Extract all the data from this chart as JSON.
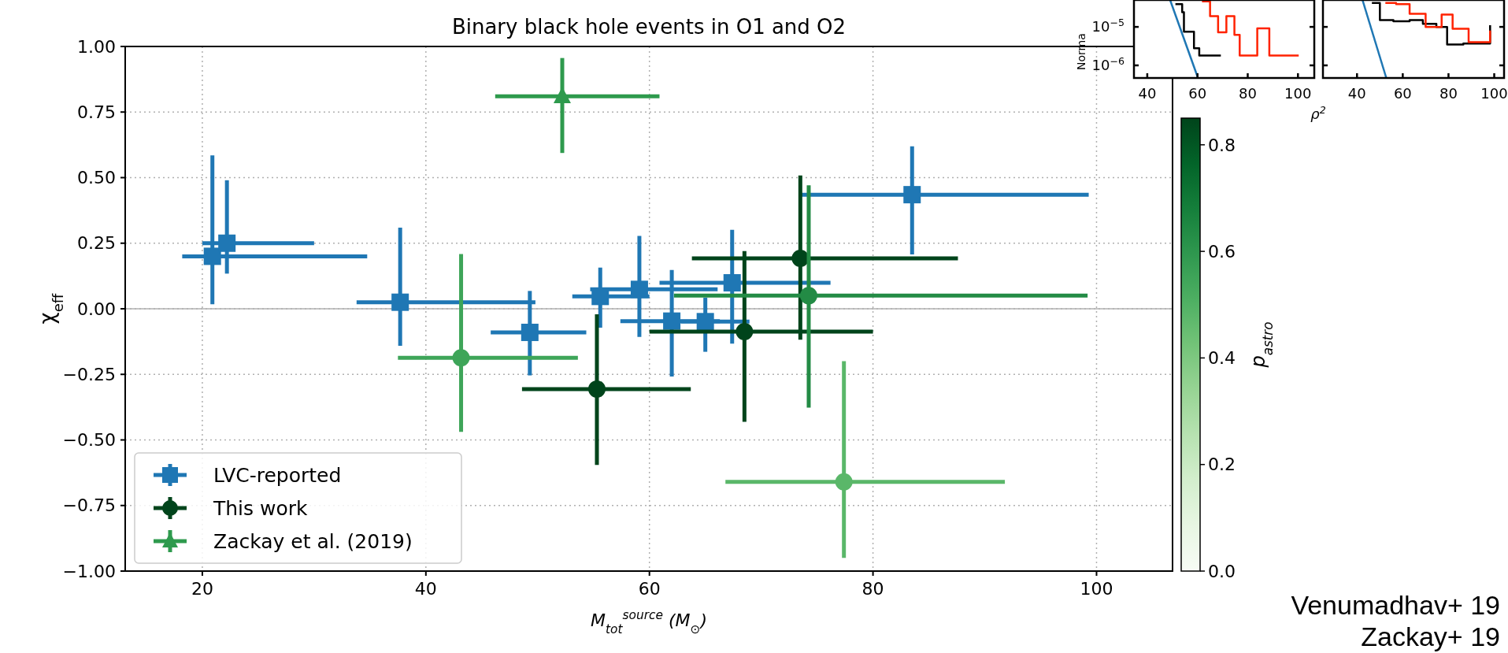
{
  "chart_data": [
    {
      "type": "scatter",
      "title": "Binary black hole events in O1 and O2",
      "xlabel": "M$_{tot}$$^{source}$ (M$_{⊙}$)",
      "ylabel": "χ$_{eff}$",
      "clabel": "p$_{astro}$",
      "xlim": [
        13.1,
        106.8
      ],
      "ylim": [
        -1,
        1
      ],
      "xticks": [
        20,
        40,
        60,
        80,
        100
      ],
      "yticks": [
        {
          "value": -1,
          "label": "−1.00"
        },
        {
          "value": -0.75,
          "label": "−0.75"
        },
        {
          "value": -0.5,
          "label": "−0.50"
        },
        {
          "value": -0.25,
          "label": "−0.25"
        },
        {
          "value": 0,
          "label": "0.00"
        },
        {
          "value": 0.25,
          "label": "0.25"
        },
        {
          "value": 0.5,
          "label": "0.50"
        },
        {
          "value": 0.75,
          "label": "0.75"
        },
        {
          "value": 1,
          "label": "1.00"
        }
      ],
      "clim": [
        0,
        0.85
      ],
      "cticks": [
        {
          "value": 0,
          "label": "0.0"
        },
        {
          "value": 0.2,
          "label": "0.2"
        },
        {
          "value": 0.4,
          "label": "0.4"
        },
        {
          "value": 0.6,
          "label": "0.6"
        },
        {
          "value": 0.8,
          "label": "0.8"
        }
      ],
      "grid": true,
      "legend": "bottom left",
      "ref_lines": [
        {
          "axis": "y",
          "value": 0,
          "color": "#b0b0b0",
          "line_style": "solid"
        }
      ],
      "annotations": [
        "Venumadhav+ 19",
        "Zackay+ 19"
      ],
      "series": [
        {
          "name": "LVC-reported",
          "color": "#1f77b4",
          "marker": "square",
          "x": [
            20.9,
            22.2,
            37.7,
            49.3,
            55.6,
            59.1,
            62.0,
            65.0,
            67.4,
            83.5
          ],
          "values": [
            0.2,
            0.25,
            0.025,
            -0.09,
            0.047,
            0.074,
            -0.047,
            -0.049,
            0.099,
            0.435
          ],
          "errors": [
            [
              0.017,
              0.585
            ],
            [
              0.134,
              0.49
            ],
            [
              -0.141,
              0.309
            ],
            [
              -0.254,
              0.068
            ],
            [
              -0.072,
              0.157
            ],
            [
              -0.107,
              0.278
            ],
            [
              -0.258,
              0.148
            ],
            [
              -0.164,
              0.042
            ],
            [
              -0.133,
              0.301
            ],
            [
              0.207,
              0.619
            ]
          ],
          "xerrors": [
            [
              18.2,
              34.75
            ],
            [
              20.0,
              30.0
            ],
            [
              33.8,
              49.8
            ],
            [
              45.8,
              54.35
            ],
            [
              53.1,
              60.0
            ],
            [
              54.7,
              66.1
            ],
            [
              57.4,
              66.3
            ],
            [
              62.8,
              68.95
            ],
            [
              60.9,
              76.2
            ],
            [
              73.6,
              99.3
            ]
          ]
        },
        {
          "name": "This work",
          "color": "#00441b",
          "marker": "circle",
          "x": [
            55.3,
            68.5,
            73.5,
            43.15,
            74.25,
            77.4
          ],
          "values": [
            -0.306,
            -0.087,
            0.192,
            -0.187,
            0.05,
            -0.66
          ],
          "colors": [
            "#00441b",
            "#00441b",
            "#00441b",
            "#3ea559",
            "#238b45",
            "#5ab769"
          ],
          "errors": [
            [
              -0.595,
              -0.021
            ],
            [
              -0.431,
              0.22
            ],
            [
              -0.118,
              0.508
            ],
            [
              -0.469,
              0.209
            ],
            [
              -0.377,
              0.471
            ],
            [
              -0.95,
              -0.2
            ]
          ],
          "xerrors": [
            [
              48.6,
              63.7
            ],
            [
              60,
              80
            ],
            [
              63.8,
              87.6
            ],
            [
              37.5,
              53.6
            ],
            [
              62.2,
              99.2
            ],
            [
              66.8,
              91.8
            ]
          ]
        },
        {
          "name": "Zackay et al. (2019)",
          "color": "#2e9a4d",
          "marker": "triangle",
          "x": [
            52.2
          ],
          "values": [
            0.81
          ],
          "errors": [
            [
              0.594,
              0.956
            ]
          ],
          "xerrors": [
            [
              46.2,
              60.9
            ]
          ]
        }
      ]
    },
    {
      "type": "step",
      "xlabel": "ρ$^{2}$",
      "ylabel": "Norma",
      "log": "y",
      "xlim": [
        34.7,
        106.5
      ],
      "ylim": [
        4.7e-07,
        5e-05
      ],
      "xticks": [
        40,
        60,
        80,
        100
      ],
      "yticks": [
        {
          "value": 1e-05,
          "label": "10$^{−5}$"
        },
        {
          "value": 1e-06,
          "label": "10$^{−6}$"
        }
      ],
      "series": [
        {
          "color": "#000000",
          "x": [
            51.2,
            53.9,
            54.6,
            57.6,
            58.6,
            60.7,
            65,
            69.3
          ],
          "values": [
            3.9e-05,
            2.4e-05,
            7.5e-06,
            7.5e-06,
            2.8e-06,
            1.8e-06,
            1.8e-06,
            1.8e-06
          ]
        },
        {
          "color": "#ff2200",
          "x": [
            61.8,
            65,
            68.2,
            71.5,
            74.7,
            76.8,
            80,
            83.8,
            88.6,
            95,
            100.3
          ],
          "values": [
            4.6e-05,
            1.9e-05,
            7.2e-06,
            1.9e-05,
            6.2e-06,
            1.8e-06,
            1.8e-06,
            9.2e-06,
            1.8e-06,
            1.8e-06,
            1.8e-06
          ]
        },
        {
          "type": "line",
          "color": "#1f77b4",
          "x": [
            49.1,
            60
          ],
          "values": [
            5e-05,
            5.1e-07
          ]
        }
      ]
    },
    {
      "type": "step",
      "log": "y",
      "xlim": [
        25.1,
        104.3
      ],
      "ylim": [
        4.7e-07,
        5e-05
      ],
      "xticks": [
        40,
        60,
        80,
        100
      ],
      "yticks": [
        {
          "value": 1e-05,
          "label": null
        },
        {
          "value": 1e-06,
          "label": null
        }
      ],
      "tick_labels": "x",
      "series": [
        {
          "color": "#000000",
          "x": [
            46.5,
            50,
            55.9,
            63,
            68.8,
            74.7,
            79.4,
            86.5,
            95.9,
            98.2
          ],
          "values": [
            4.2e-05,
            1.5e-05,
            1.4e-05,
            1.5e-05,
            1.2e-05,
            1e-05,
            3.5e-06,
            3.7e-06,
            3.7e-06,
            1.1e-05
          ]
        },
        {
          "color": "#ff2200",
          "x": [
            52.4,
            57.1,
            63,
            70,
            77,
            81.8,
            88.8,
            98.2
          ],
          "values": [
            4.2e-05,
            3.9e-05,
            2.2e-05,
            1e-05,
            2.1e-05,
            9e-06,
            4e-06,
            8e-06
          ]
        },
        {
          "type": "line",
          "color": "#1f77b4",
          "x": [
            42.4,
            52.8
          ],
          "values": [
            5e-05,
            4.7e-07
          ]
        }
      ]
    }
  ]
}
